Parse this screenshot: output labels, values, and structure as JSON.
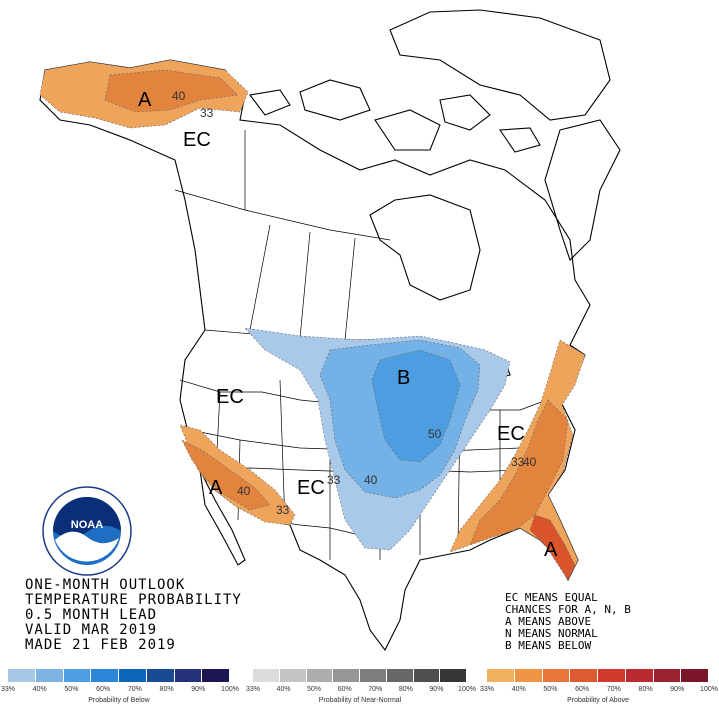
{
  "map": {
    "regions": [
      {
        "label": "A"
      },
      {
        "label": "EC"
      },
      {
        "label": "EC"
      },
      {
        "label": "B"
      },
      {
        "label": "EC"
      },
      {
        "label": "EC"
      },
      {
        "label": "A"
      },
      {
        "label": "A"
      }
    ],
    "contours": [
      "40",
      "33",
      "50",
      "33",
      "40",
      "40",
      "33",
      "33",
      "40"
    ]
  },
  "outlook": {
    "line1": "ONE-MONTH OUTLOOK",
    "line2": "TEMPERATURE PROBABILITY",
    "line3": "0.5 MONTH LEAD",
    "line4": "VALID MAR 2019",
    "line5": "MADE 21 FEB 2019"
  },
  "legend": {
    "line1": "EC MEANS EQUAL",
    "line2": "CHANCES FOR A, N, B",
    "line3": "A MEANS ABOVE",
    "line4": "N MEANS NORMAL",
    "line5": "B MEANS BELOW"
  },
  "logo": {
    "text": "NOAA",
    "ring_text": "NATIONAL OCEANIC AND ATMOSPHERIC ADMINISTRATION · U.S. DEPARTMENT OF COMMERCE"
  },
  "scales": {
    "below": {
      "title": "Probability of Below",
      "ticks": [
        "33%",
        "40%",
        "50%",
        "60%",
        "70%",
        "80%",
        "90%",
        "100%"
      ],
      "colors": [
        "#a8c8e8",
        "#7eb4e3",
        "#4c9ee0",
        "#2c85d6",
        "#0d66b8",
        "#1a4a94",
        "#23307a",
        "#1c1652"
      ]
    },
    "normal": {
      "title": "Probability of Near-Normal",
      "ticks": [
        "33%",
        "40%",
        "50%",
        "60%",
        "70%",
        "80%",
        "90%",
        "100%"
      ],
      "colors": [
        "#dcdcdc",
        "#c4c4c4",
        "#adadad",
        "#969696",
        "#7e7e7e",
        "#676767",
        "#4f4f4f",
        "#363636"
      ]
    },
    "above": {
      "title": "Probability of Above",
      "ticks": [
        "33%",
        "40%",
        "50%",
        "60%",
        "70%",
        "80%",
        "90%",
        "100%"
      ],
      "colors": [
        "#f2b160",
        "#ee9646",
        "#e8763a",
        "#de5a30",
        "#cf3b2c",
        "#bb2a30",
        "#9c2230",
        "#7a1628"
      ]
    }
  },
  "colors": {
    "below_light": "#a9c9ea",
    "below_mid": "#4aa2e6",
    "above_light": "#eda35a",
    "above_mid": "#e2773a",
    "above_dark": "#d9542b"
  }
}
